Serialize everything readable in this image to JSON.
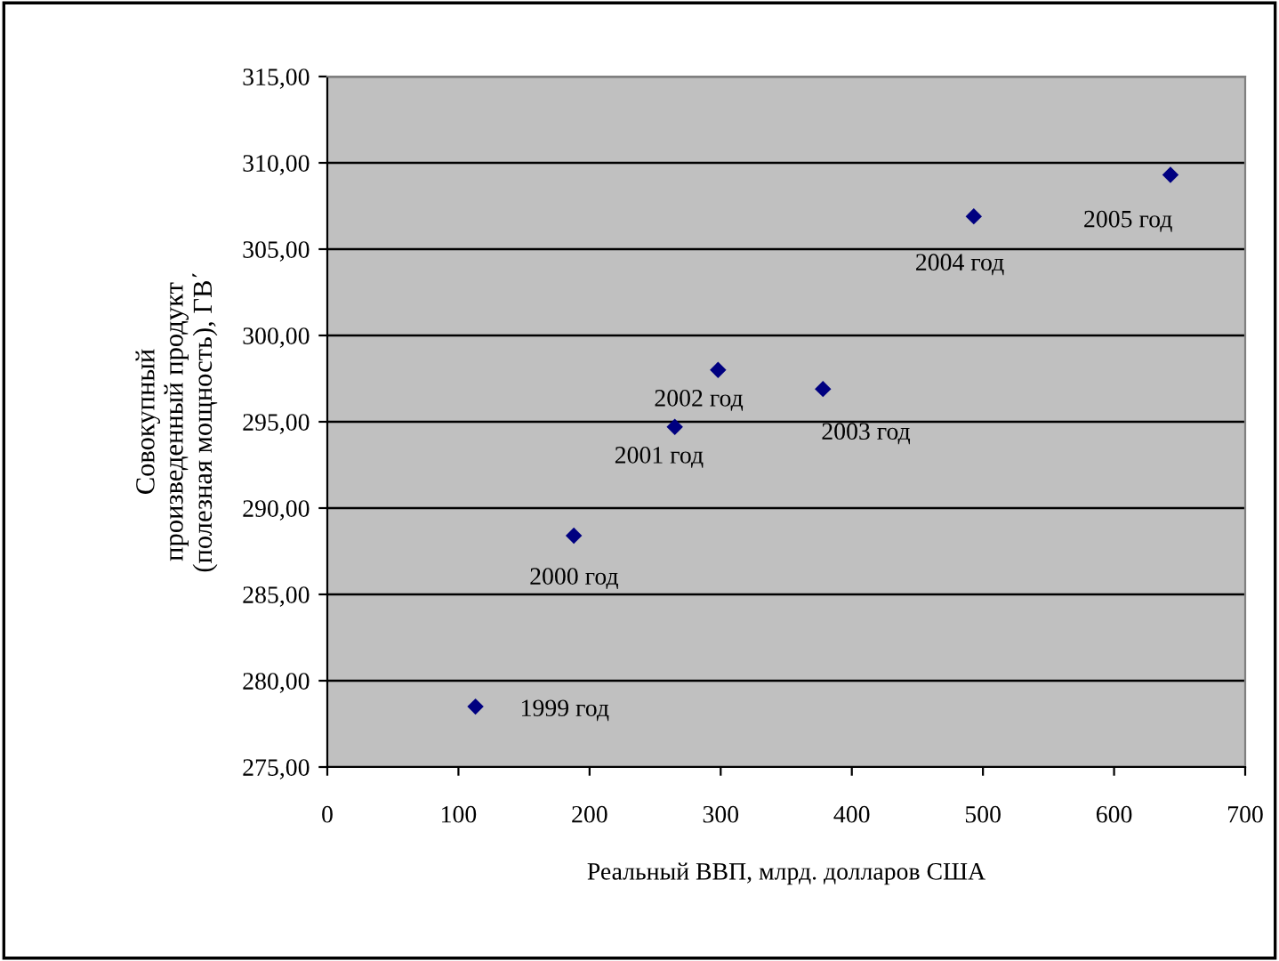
{
  "chart_data": {
    "type": "scatter",
    "xlabel": "Реальный ВВП, млрд. долларов США",
    "ylabel": "Совокупный\nпроизведенный продукт\n(полезная мощность), ГВ΄",
    "x": [
      113,
      188,
      265,
      298,
      378,
      493,
      643
    ],
    "values": [
      278.5,
      288.4,
      294.7,
      298.0,
      296.9,
      306.9,
      309.3
    ],
    "color": "#000080",
    "marker": "diamond",
    "annotations": [
      {
        "text": "1999 год",
        "x": 113,
        "y": 278.5
      },
      {
        "text": "2000 год",
        "x": 188,
        "y": 288.4
      },
      {
        "text": "2001 год",
        "x": 265,
        "y": 294.7
      },
      {
        "text": "2002 год",
        "x": 298,
        "y": 298.0
      },
      {
        "text": "2003 год",
        "x": 378,
        "y": 296.9
      },
      {
        "text": "2004 год",
        "x": 493,
        "y": 306.9
      },
      {
        "text": "2005 год",
        "x": 643,
        "y": 309.3
      }
    ],
    "xlim": [
      0,
      700
    ],
    "xticks": [
      0,
      100,
      200,
      300,
      400,
      500,
      600,
      700
    ],
    "ylim": [
      275,
      315
    ],
    "yticks": [
      {
        "value": 275,
        "label": "275,00"
      },
      {
        "value": 280,
        "label": "280,00"
      },
      {
        "value": 285,
        "label": "285,00"
      },
      {
        "value": 290,
        "label": "290,00"
      },
      {
        "value": 295,
        "label": "295,00"
      },
      {
        "value": 300,
        "label": "300,00"
      },
      {
        "value": 305,
        "label": "305,00"
      },
      {
        "value": 310,
        "label": "310,00"
      },
      {
        "value": 315,
        "label": "315,00"
      }
    ],
    "grid": "y",
    "legend": false
  }
}
